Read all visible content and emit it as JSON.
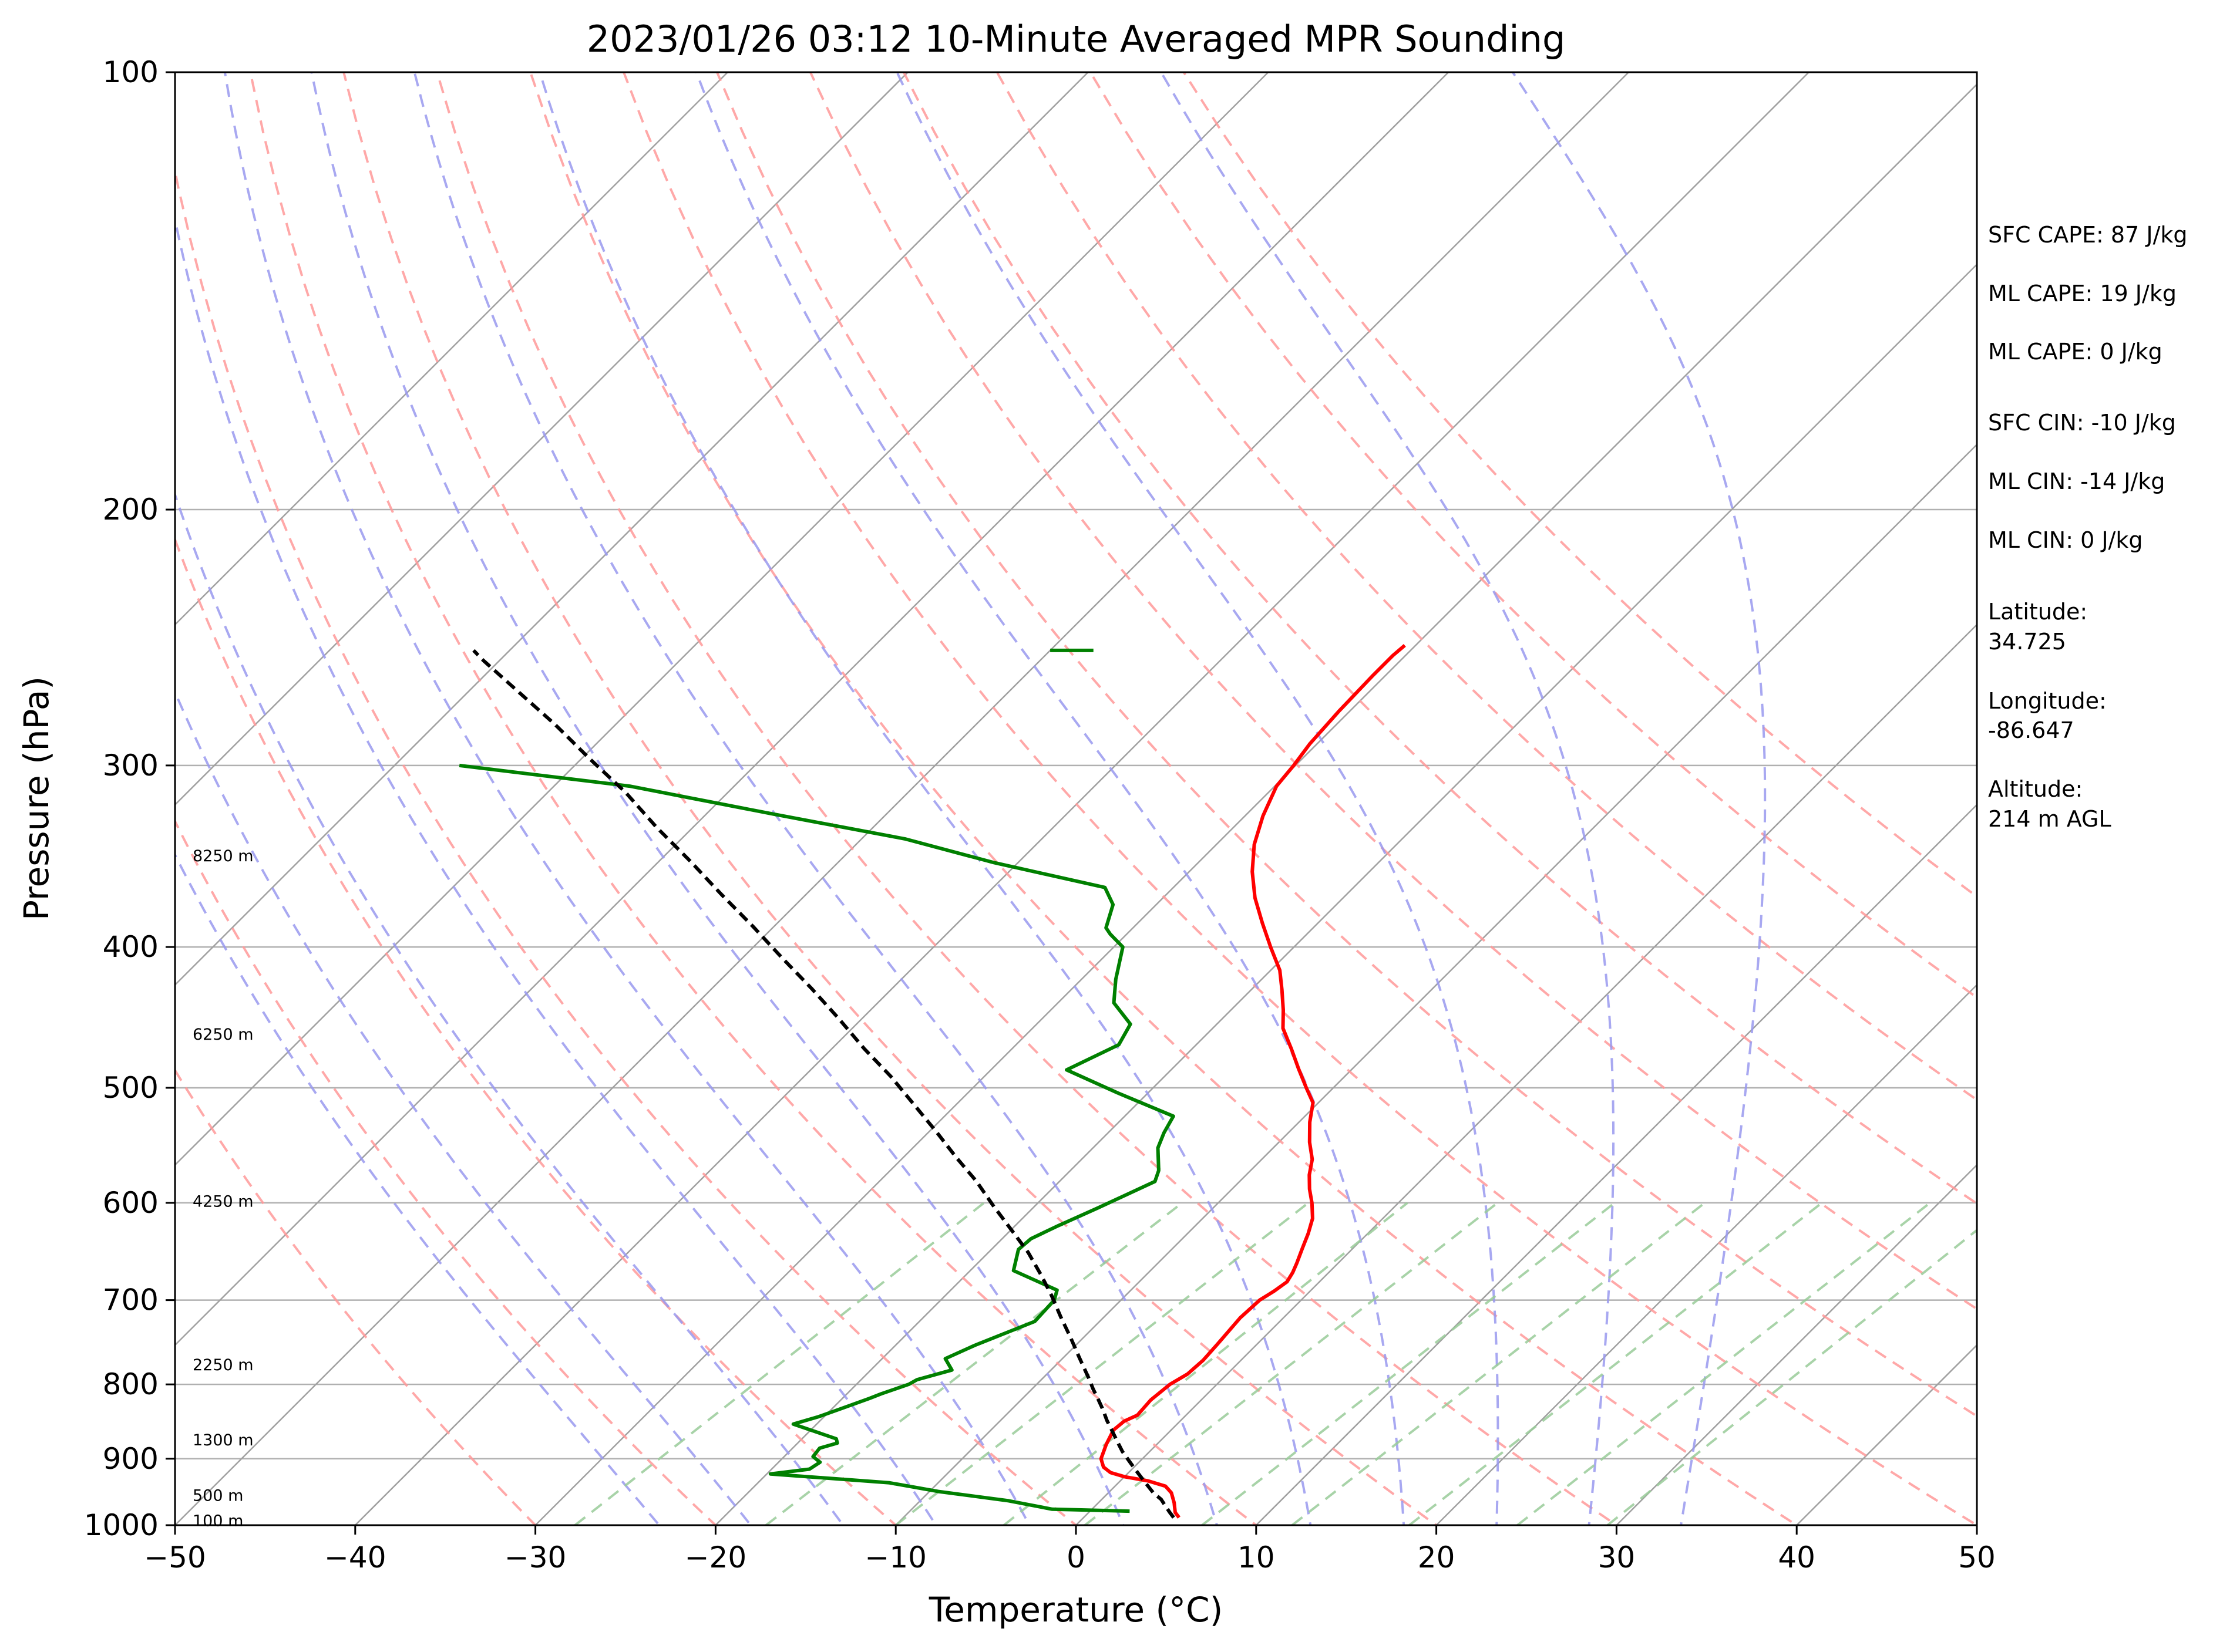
{
  "chart_data": {
    "type": "line",
    "title": "2023/01/26 03:12 10-Minute Averaged MPR Sounding",
    "xlabel": "Temperature (°C)",
    "ylabel": "Pressure (hPa)",
    "xlim": [
      -50,
      50
    ],
    "ylim": [
      1000,
      100
    ],
    "y_scale": "log",
    "x_ticks": [
      "−50",
      "−40",
      "−30",
      "−20",
      "−10",
      "0",
      "10",
      "20",
      "30",
      "40",
      "50"
    ],
    "y_ticks": [
      "100",
      "200",
      "300",
      "400",
      "500",
      "600",
      "700",
      "800",
      "900",
      "1000"
    ],
    "grid": true,
    "colors": {
      "temperature": "#ff0000",
      "dewpoint": "#008000",
      "parcel": "#000000",
      "isotherm": "#a0a0a0",
      "dry_adiabat": "#ff9999",
      "moist_adiabat": "#9999ee",
      "mixing_ratio": "#99cc99"
    },
    "series": [
      {
        "key": "temperature",
        "points": [
          [
            5.3,
            988
          ],
          [
            4.8,
            980
          ],
          [
            4.2,
            965
          ],
          [
            3.5,
            950
          ],
          [
            2.8,
            940
          ],
          [
            1.5,
            932
          ],
          [
            0,
            926
          ],
          [
            -1,
            920
          ],
          [
            -1.7,
            912
          ],
          [
            -2.3,
            900
          ],
          [
            -2.8,
            880
          ],
          [
            -3.2,
            860
          ],
          [
            -3.1,
            848
          ],
          [
            -2.7,
            840
          ],
          [
            -2.8,
            820
          ],
          [
            -2.6,
            800
          ],
          [
            -2.2,
            787
          ],
          [
            -2.1,
            770
          ],
          [
            -2.2,
            750
          ],
          [
            -2.4,
            720
          ],
          [
            -2.3,
            700
          ],
          [
            -2,
            690
          ],
          [
            -1.8,
            680
          ],
          [
            -2,
            670
          ],
          [
            -2.3,
            660
          ],
          [
            -2.8,
            645
          ],
          [
            -3.3,
            630
          ],
          [
            -3.9,
            615
          ],
          [
            -4.8,
            600
          ],
          [
            -5.7,
            587
          ],
          [
            -6.5,
            574
          ],
          [
            -7.2,
            560
          ],
          [
            -8.3,
            545
          ],
          [
            -9.4,
            528
          ],
          [
            -10.3,
            512
          ],
          [
            -11.5,
            500
          ],
          [
            -13,
            485
          ],
          [
            -14.5,
            470
          ],
          [
            -16.1,
            455
          ],
          [
            -17.1,
            442
          ],
          [
            -18.3,
            428
          ],
          [
            -19.5,
            415
          ],
          [
            -21.3,
            400
          ],
          [
            -23.1,
            385
          ],
          [
            -24.9,
            370
          ],
          [
            -26.5,
            355
          ],
          [
            -27.9,
            340
          ],
          [
            -29,
            325
          ],
          [
            -29.9,
            310
          ],
          [
            -30.1,
            300
          ],
          [
            -30.4,
            290
          ],
          [
            -30.6,
            275
          ],
          [
            -30.7,
            260
          ],
          [
            -30.7,
            252
          ],
          [
            -30.6,
            248
          ]
        ]
      },
      {
        "key": "dewpoint",
        "points": [
          [
            2.2,
            978
          ],
          [
            -2.2,
            975
          ],
          [
            -5.1,
            962
          ],
          [
            -9.5,
            948
          ],
          [
            -12.7,
            935
          ],
          [
            -19.8,
            922
          ],
          [
            -17.9,
            915
          ],
          [
            -17.7,
            905
          ],
          [
            -18.4,
            897
          ],
          [
            -18.5,
            885
          ],
          [
            -17.8,
            878
          ],
          [
            -18.1,
            872
          ],
          [
            -21.3,
            852
          ],
          [
            -20.3,
            842
          ],
          [
            -19.4,
            830
          ],
          [
            -18.5,
            818
          ],
          [
            -18.1,
            812
          ],
          [
            -17.1,
            800
          ],
          [
            -16.9,
            794
          ],
          [
            -15.5,
            782
          ],
          [
            -16.5,
            768
          ],
          [
            -15.6,
            752
          ],
          [
            -13.6,
            724
          ],
          [
            -13.7,
            700
          ],
          [
            -14.1,
            689
          ],
          [
            -17.6,
            668
          ],
          [
            -18.5,
            646
          ],
          [
            -18.4,
            635
          ],
          [
            -17.6,
            622
          ],
          [
            -16.4,
            605
          ],
          [
            -14.7,
            580
          ],
          [
            -15.1,
            570
          ],
          [
            -16.4,
            550
          ],
          [
            -16.9,
            537
          ],
          [
            -17.3,
            523
          ],
          [
            -21.7,
            504
          ],
          [
            -25.8,
            486
          ],
          [
            -24.3,
            467
          ],
          [
            -24.8,
            452
          ],
          [
            -26.9,
            437
          ],
          [
            -28.1,
            421
          ],
          [
            -29.5,
            400
          ],
          [
            -30.9,
            392
          ],
          [
            -31.5,
            388
          ],
          [
            -32.4,
            374
          ],
          [
            -33.8,
            364
          ],
          [
            -41.3,
            350
          ],
          [
            -47.6,
            337
          ],
          [
            -56.3,
            324
          ],
          [
            -65.8,
            310
          ],
          [
            -76.4,
            300
          ]
        ]
      },
      {
        "key": "parcel",
        "points": [
          [
            5,
            988
          ],
          [
            4.5,
            980
          ],
          [
            3.9,
            970
          ],
          [
            3.3,
            960
          ],
          [
            2.5,
            950
          ],
          [
            1.5,
            935
          ],
          [
            0.5,
            920
          ],
          [
            -0.5,
            905
          ],
          [
            -1.5,
            890
          ],
          [
            -2.4,
            875
          ],
          [
            -3.3,
            860
          ],
          [
            -4.1,
            847
          ],
          [
            -4.9,
            833
          ],
          [
            -5.7,
            820
          ],
          [
            -6.6,
            806
          ],
          [
            -7.4,
            793
          ],
          [
            -9.1,
            767
          ],
          [
            -10.7,
            743
          ],
          [
            -12.4,
            719
          ],
          [
            -14.1,
            695
          ],
          [
            -15.8,
            673
          ],
          [
            -17.8,
            649
          ],
          [
            -20.1,
            625
          ],
          [
            -22.4,
            602
          ],
          [
            -24.6,
            580
          ],
          [
            -27.1,
            558
          ],
          [
            -29.6,
            536
          ],
          [
            -32.4,
            513
          ],
          [
            -35.2,
            491
          ],
          [
            -38.2,
            470
          ],
          [
            -41.3,
            448
          ],
          [
            -44.5,
            427
          ],
          [
            -47.8,
            407
          ],
          [
            -51.2,
            387
          ],
          [
            -54.7,
            368
          ],
          [
            -58.3,
            349
          ],
          [
            -62,
            331
          ],
          [
            -65.7,
            313
          ],
          [
            -69.5,
            297
          ],
          [
            -73.4,
            281
          ],
          [
            -77.2,
            267
          ],
          [
            -80.9,
            254
          ],
          [
            -82,
            250
          ]
        ]
      }
    ],
    "wind_barb_top": {
      "pressure": 250,
      "temperature_start": -50,
      "temperature_end": -47.6
    },
    "height_labels": [
      {
        "text": "8250 m",
        "pressure": 346
      },
      {
        "text": "6250 m",
        "pressure": 459
      },
      {
        "text": "4250 m",
        "pressure": 598
      },
      {
        "text": "2250 m",
        "pressure": 775
      },
      {
        "text": "1300 m",
        "pressure": 873
      },
      {
        "text": "500 m",
        "pressure": 953
      },
      {
        "text": "100 m",
        "pressure": 992
      }
    ],
    "isotherms_c": [
      -100,
      -90,
      -80,
      -70,
      -60,
      -50,
      -40,
      -30,
      -20,
      -10,
      0,
      10,
      20,
      30,
      40,
      50
    ],
    "dry_adiabats_c": [
      -30,
      -20,
      -10,
      0,
      10,
      20,
      30,
      40,
      50,
      60,
      70,
      80,
      90,
      100,
      110
    ],
    "moist_adiabats_c": [
      -20,
      -15,
      -10,
      -5,
      0,
      5,
      10,
      15,
      20,
      25,
      30,
      35
    ],
    "mixing_ratio_lines": [
      {
        "top_t": -23,
        "bottom_t": -27.8
      },
      {
        "top_t": -12,
        "bottom_t": -17.2
      },
      {
        "top_t": -5,
        "bottom_t": -10
      },
      {
        "top_t": 0.5,
        "bottom_t": -4
      },
      {
        "top_t": 5.5,
        "bottom_t": 0.5
      },
      {
        "top_t": 12,
        "bottom_t": 7
      },
      {
        "top_t": 17,
        "bottom_t": 12
      },
      {
        "top_t": 23.5,
        "bottom_t": 18.5
      },
      {
        "top_t": 29.5,
        "bottom_t": 24.5
      },
      {
        "top_t": 34,
        "bottom_t": 29.5
      }
    ]
  },
  "parameters": [
    {
      "text": "SFC CAPE: 87 J/kg"
    },
    {
      "text": "ML CAPE: 19 J/kg"
    },
    {
      "text": "ML CAPE: 0 J/kg"
    },
    {
      "text": "SFC CIN: -10 J/kg"
    },
    {
      "text": "ML CIN: -14 J/kg"
    },
    {
      "text": "ML CIN: 0 J/kg"
    },
    {
      "lines": [
        "Latitude:",
        "34.725"
      ]
    },
    {
      "lines": [
        "Longitude:",
        "-86.647"
      ]
    },
    {
      "lines": [
        "Altitude:",
        "214 m AGL"
      ]
    }
  ]
}
